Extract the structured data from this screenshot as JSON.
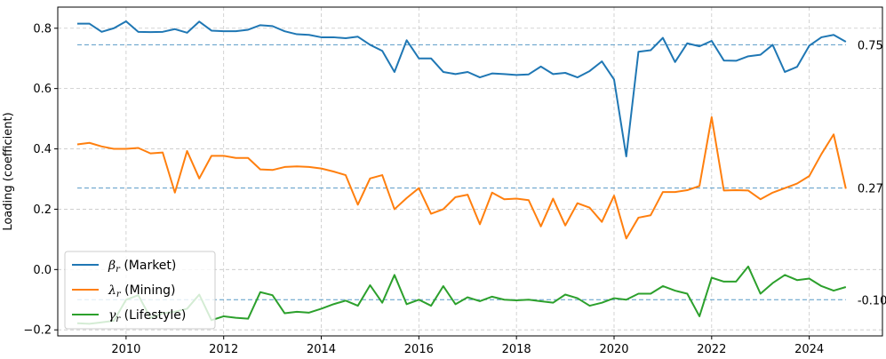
{
  "chart_data": {
    "type": "line",
    "ylabel": "Loading (coefficient)",
    "xlabel": "",
    "title": "",
    "xlim": [
      2008.6,
      2025.5
    ],
    "ylim": [
      -0.22,
      0.87
    ],
    "x_ticks": [
      2010,
      2012,
      2014,
      2016,
      2018,
      2020,
      2022,
      2024
    ],
    "y_ticks": [
      -0.2,
      0.0,
      0.2,
      0.4,
      0.6,
      0.8
    ],
    "y_tick_labels": [
      "−0.2",
      "0.0",
      "0.2",
      "0.4",
      "0.6",
      "0.8"
    ],
    "grid": true,
    "legend_position": "lower-left",
    "x": [
      2009.0,
      2009.25,
      2009.5,
      2009.75,
      2010.0,
      2010.25,
      2010.5,
      2010.75,
      2011.0,
      2011.25,
      2011.5,
      2011.75,
      2012.0,
      2012.25,
      2012.5,
      2012.75,
      2013.0,
      2013.25,
      2013.5,
      2013.75,
      2014.0,
      2014.25,
      2014.5,
      2014.75,
      2015.0,
      2015.25,
      2015.5,
      2015.75,
      2016.0,
      2016.25,
      2016.5,
      2016.75,
      2017.0,
      2017.25,
      2017.5,
      2017.75,
      2018.0,
      2018.25,
      2018.5,
      2018.75,
      2019.0,
      2019.25,
      2019.5,
      2019.75,
      2020.0,
      2020.25,
      2020.5,
      2020.75,
      2021.0,
      2021.25,
      2021.5,
      2021.75,
      2022.0,
      2022.25,
      2022.5,
      2022.75,
      2023.0,
      2023.25,
      2023.5,
      2023.75,
      2024.0,
      2024.25,
      2024.5,
      2024.75
    ],
    "series": [
      {
        "name": "β_r (Market)",
        "symbol": "β",
        "sub": "r",
        "label_text": " (Market)",
        "color": "#1f77b4",
        "values": [
          0.815,
          0.815,
          0.788,
          0.8,
          0.823,
          0.788,
          0.787,
          0.788,
          0.797,
          0.785,
          0.822,
          0.792,
          0.79,
          0.79,
          0.795,
          0.81,
          0.807,
          0.79,
          0.78,
          0.778,
          0.77,
          0.77,
          0.767,
          0.772,
          0.745,
          0.725,
          0.655,
          0.76,
          0.7,
          0.7,
          0.655,
          0.648,
          0.655,
          0.637,
          0.65,
          0.648,
          0.645,
          0.647,
          0.673,
          0.648,
          0.652,
          0.637,
          0.658,
          0.69,
          0.63,
          0.375,
          0.722,
          0.727,
          0.768,
          0.688,
          0.75,
          0.74,
          0.758,
          0.693,
          0.692,
          0.707,
          0.712,
          0.745,
          0.655,
          0.672,
          0.742,
          0.77,
          0.778,
          0.755
        ],
        "ref": 0.745,
        "ref_label": "0.75"
      },
      {
        "name": "λ_r (Mining)",
        "symbol": "λ",
        "sub": "r",
        "label_text": " (Mining)",
        "color": "#ff7f0e",
        "values": [
          0.415,
          0.42,
          0.408,
          0.4,
          0.4,
          0.403,
          0.385,
          0.388,
          0.255,
          0.393,
          0.302,
          0.377,
          0.377,
          0.37,
          0.37,
          0.332,
          0.33,
          0.34,
          0.342,
          0.34,
          0.335,
          0.325,
          0.313,
          0.215,
          0.302,
          0.313,
          0.2,
          0.237,
          0.27,
          0.185,
          0.2,
          0.24,
          0.248,
          0.15,
          0.255,
          0.233,
          0.235,
          0.23,
          0.143,
          0.235,
          0.146,
          0.22,
          0.205,
          0.158,
          0.245,
          0.103,
          0.172,
          0.18,
          0.257,
          0.257,
          0.263,
          0.277,
          0.505,
          0.262,
          0.263,
          0.262,
          0.233,
          0.255,
          0.27,
          0.285,
          0.31,
          0.383,
          0.448,
          0.268
        ],
        "ref": 0.27,
        "ref_label": "0.27"
      },
      {
        "name": "γ_r (Lifestyle)",
        "symbol": "γ",
        "sub": "r",
        "label_text": " (Lifestyle)",
        "color": "#2ca02c",
        "values": [
          -0.178,
          -0.18,
          -0.175,
          -0.17,
          -0.1,
          -0.085,
          -0.16,
          -0.145,
          -0.14,
          -0.13,
          -0.083,
          -0.168,
          -0.155,
          -0.16,
          -0.163,
          -0.075,
          -0.085,
          -0.145,
          -0.14,
          -0.143,
          -0.13,
          -0.115,
          -0.103,
          -0.12,
          -0.052,
          -0.11,
          -0.018,
          -0.115,
          -0.1,
          -0.12,
          -0.055,
          -0.115,
          -0.092,
          -0.105,
          -0.09,
          -0.1,
          -0.102,
          -0.1,
          -0.105,
          -0.11,
          -0.083,
          -0.095,
          -0.12,
          -0.11,
          -0.095,
          -0.1,
          -0.08,
          -0.08,
          -0.055,
          -0.07,
          -0.08,
          -0.155,
          -0.027,
          -0.04,
          -0.04,
          0.01,
          -0.08,
          -0.045,
          -0.018,
          -0.035,
          -0.03,
          -0.055,
          -0.07,
          -0.058
        ],
        "ref": -0.1,
        "ref_label": "-0.10"
      }
    ]
  }
}
